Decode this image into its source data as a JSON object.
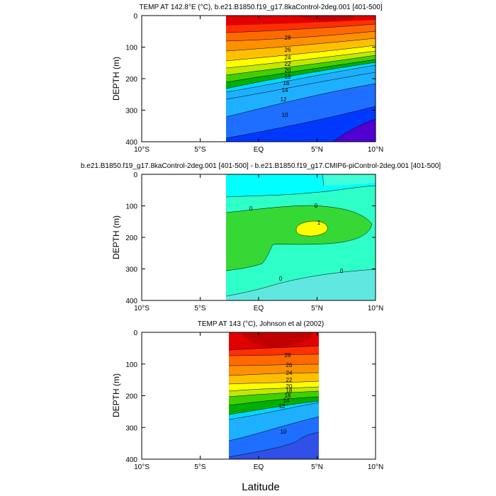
{
  "figure": {
    "xlabel": "Latitude"
  },
  "chart_data": [
    {
      "type": "heatmap",
      "title": "TEMP AT 142.8°E (°C), b.e21.B1850.f19_g17.8kaControl-2deg.001 [401-500]",
      "xlabel": "",
      "ylabel": "DEPTH (m)",
      "xlim": [
        -10,
        10
      ],
      "ylim": [
        400,
        0
      ],
      "data_xrange": [
        -3,
        10
      ],
      "x_ticks": [
        "10°S",
        "5°S",
        "EQ",
        "5°N",
        "10°N"
      ],
      "y_ticks": [
        "0",
        "100",
        "200",
        "300",
        "400"
      ],
      "contour_interval": 1,
      "contour_labels": [
        "28",
        "26",
        "24",
        "22",
        "20",
        "18",
        "16",
        "14",
        "12",
        "10"
      ],
      "upper_isotherm_depth_m": {
        "at_3S": 30,
        "at_10N": 15
      },
      "thermocline_center_depth_m": {
        "at_3S": 215,
        "at_10N": 140
      },
      "colors": [
        "#e00000",
        "#ff6a00",
        "#ffc000",
        "#00b000",
        "#00d8ff",
        "#1e6fff",
        "#5000d0"
      ]
    },
    {
      "type": "heatmap",
      "title": "b.e21.B1850.f19_g17.8kaControl-2deg.001 [401-500] - b.e21.B1850.f19_g17.CMIP6-piControl-2deg.001 [401-500]",
      "xlabel": "",
      "ylabel": "DEPTH (m)",
      "xlim": [
        -10,
        10
      ],
      "ylim": [
        400,
        0
      ],
      "data_xrange": [
        -3,
        10
      ],
      "x_ticks": [
        "10°S",
        "5°S",
        "EQ",
        "5°N",
        "10°N"
      ],
      "y_ticks": [
        "0",
        "100",
        "200",
        "300",
        "400"
      ],
      "contour_labels": [
        "0",
        "0",
        "1",
        "0",
        "0"
      ],
      "colors": [
        "#00ffff",
        "#2effc8",
        "#36d836",
        "#ffff00",
        "#60e8e0"
      ]
    },
    {
      "type": "heatmap",
      "title": "TEMP AT 143 (°C), Johnson et al (2002)",
      "xlabel": "",
      "ylabel": "DEPTH (m)",
      "xlim": [
        -10,
        10
      ],
      "ylim": [
        400,
        0
      ],
      "data_xrange": [
        -2.5,
        5
      ],
      "x_ticks": [
        "10°S",
        "5°S",
        "EQ",
        "5°N",
        "10°N"
      ],
      "y_ticks": [
        "0",
        "100",
        "200",
        "300",
        "400"
      ],
      "contour_interval": 1,
      "contour_labels": [
        "28",
        "26",
        "24",
        "22",
        "20",
        "18",
        "16",
        "14",
        "12",
        "10"
      ],
      "colors": [
        "#e00000",
        "#ff6a00",
        "#ffc000",
        "#00b000",
        "#00d8ff",
        "#1e6fff",
        "#3050e8"
      ]
    }
  ]
}
